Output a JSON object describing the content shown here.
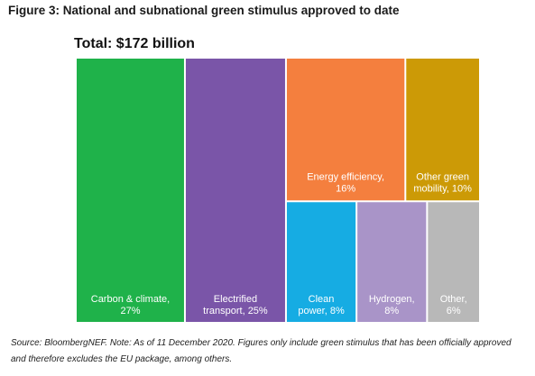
{
  "figure_title": "Figure 3: National and subnational green stimulus approved to date",
  "source_note": "Source: BloombergNEF. Note: As of 11 December 2020. Figures only include green stimulus that has been officially approved and therefore excludes the EU package, among others.",
  "chart_data": {
    "type": "treemap",
    "title": "Total: $172 billion",
    "total_billion_usd": 172,
    "items": [
      {
        "id": "carbon-climate",
        "label_lines": [
          "Carbon & climate,",
          "27%"
        ],
        "percent": 27,
        "color": "#1fb24a"
      },
      {
        "id": "electrified-transport",
        "label_lines": [
          "Electrified",
          "transport, 25%"
        ],
        "percent": 25,
        "color": "#7a55a8"
      },
      {
        "id": "energy-efficiency",
        "label_lines": [
          "Energy efficiency,",
          "16%"
        ],
        "percent": 16,
        "color": "#f47f3e"
      },
      {
        "id": "other-green-mobility",
        "label_lines": [
          "Other green",
          "mobility, 10%"
        ],
        "percent": 10,
        "color": "#cc9a06"
      },
      {
        "id": "clean-power",
        "label_lines": [
          "Clean",
          "power, 8%"
        ],
        "percent": 8,
        "color": "#16ace3"
      },
      {
        "id": "hydrogen",
        "label_lines": [
          "Hydrogen,",
          "8%"
        ],
        "percent": 8,
        "color": "#a994c8"
      },
      {
        "id": "other",
        "label_lines": [
          "Other,",
          "6%"
        ],
        "percent": 6,
        "color": "#b8b8b8"
      }
    ]
  }
}
